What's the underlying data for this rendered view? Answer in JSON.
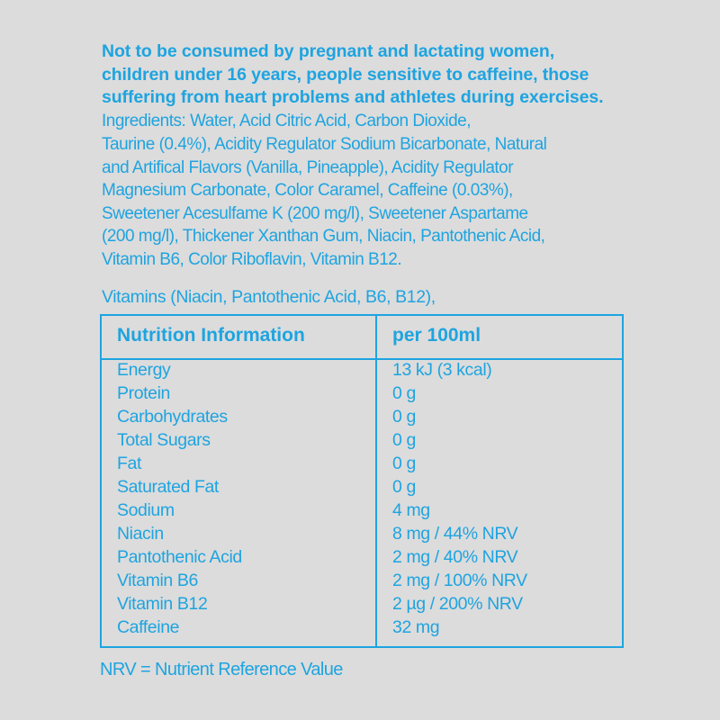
{
  "warning_lines": [
    "Not to be consumed by pregnant and lactating women,",
    "children under 16 years, people sensitive to caffeine, those",
    "suffering from heart problems and athletes during exercises."
  ],
  "ingredients_lines": [
    "Ingredients: Water, Acid Citric Acid, Carbon Dioxide,",
    "Taurine (0.4%), Acidity Regulator Sodium Bicarbonate, Natural",
    "and Artifical Flavors (Vanilla, Pineapple), Acidity Regulator",
    "Magnesium Carbonate, Color Caramel, Caffeine (0.03%),",
    "Sweetener Acesulfame K (200 mg/l), Sweetener Aspartame",
    "(200 mg/l), Thickener Xanthan Gum, Niacin, Pantothenic Acid,",
    "Vitamin B6, Color Riboflavin, Vitamin B12."
  ],
  "vitamins_line": "Vitamins (Niacin, Pantothenic Acid, B6, B12),",
  "table": {
    "header": {
      "name": "Nutrition Information",
      "value": "per 100ml"
    },
    "rows": [
      {
        "name": "Energy",
        "value": "13 kJ (3 kcal)"
      },
      {
        "name": "Protein",
        "value": "0 g"
      },
      {
        "name": "Carbohydrates",
        "value": "0 g"
      },
      {
        "name": "Total Sugars",
        "value": "0 g"
      },
      {
        "name": "Fat",
        "value": "0 g"
      },
      {
        "name": "Saturated Fat",
        "value": "0 g"
      },
      {
        "name": "Sodium",
        "value": "4 mg"
      },
      {
        "name": "Niacin",
        "value": "8 mg / 44% NRV"
      },
      {
        "name": "Pantothenic Acid",
        "value": "2 mg / 40% NRV"
      },
      {
        "name": "Vitamin B6",
        "value": "2 mg / 100% NRV"
      },
      {
        "name": "Vitamin B12",
        "value": "2 µg / 200% NRV"
      },
      {
        "name": "Caffeine",
        "value": "32 mg"
      }
    ]
  },
  "footer": "NRV = Nutrient Reference Value",
  "colors": {
    "text": "#1ea4e0",
    "background": "#dcdcdc"
  }
}
